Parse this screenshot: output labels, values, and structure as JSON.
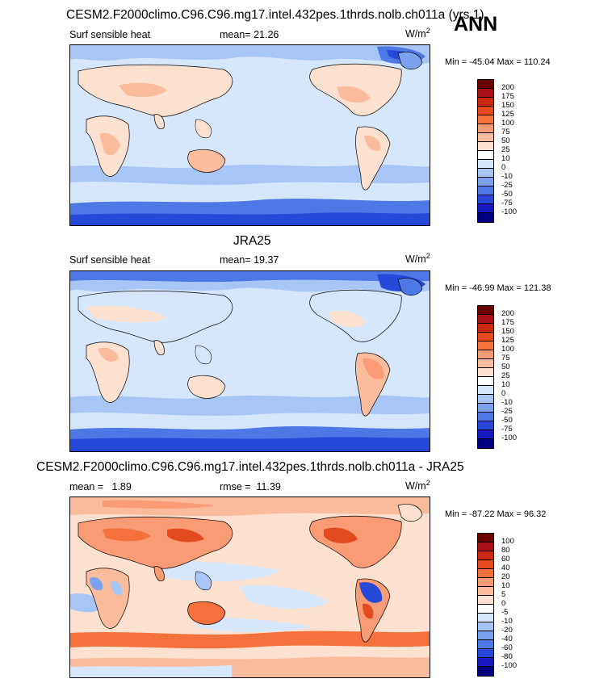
{
  "header": {
    "title": "CESM2.F2000climo.C96.C96.mg17.intel.432pes.1thrds.nolb.ch011a (yrs 1)",
    "season": "ANN"
  },
  "panels": [
    {
      "id": "model",
      "variable": "Surf sensible heat",
      "stat_label": "mean=",
      "stat_value": "21.26",
      "units": "W/m",
      "units_sup": "2",
      "min_max": "Min = -45.04 Max = 110.24",
      "levels": [
        "200",
        "175",
        "150",
        "125",
        "100",
        "75",
        "50",
        "25",
        "10",
        "0",
        "-10",
        "-25",
        "-50",
        "-75",
        "-100"
      ],
      "colors": [
        "#6b0000",
        "#a50f15",
        "#cb2a10",
        "#e34a1f",
        "#f4703c",
        "#f99b74",
        "#fbbc9e",
        "#fde1d0",
        "#ffffff",
        "#d6e7fb",
        "#a8c6f5",
        "#7ba2ee",
        "#4e78e6",
        "#2749d9",
        "#1719bf",
        "#000080"
      ]
    },
    {
      "id": "obs",
      "title": "JRA25",
      "variable": "Surf sensible heat",
      "stat_label": "mean=",
      "stat_value": "19.37",
      "units": "W/m",
      "units_sup": "2",
      "min_max": "Min = -46.99 Max = 121.38",
      "levels": [
        "200",
        "175",
        "150",
        "125",
        "100",
        "75",
        "50",
        "25",
        "10",
        "0",
        "-10",
        "-25",
        "-50",
        "-75",
        "-100"
      ],
      "colors": [
        "#6b0000",
        "#a50f15",
        "#cb2a10",
        "#e34a1f",
        "#f4703c",
        "#f99b74",
        "#fbbc9e",
        "#fde1d0",
        "#ffffff",
        "#d6e7fb",
        "#a8c6f5",
        "#7ba2ee",
        "#4e78e6",
        "#2749d9",
        "#1719bf",
        "#000080"
      ]
    },
    {
      "id": "diff",
      "title": "CESM2.F2000climo.C96.C96.mg17.intel.432pes.1thrds.nolb.ch011a - JRA25",
      "stat_label": "mean =",
      "stat_value": "1.89",
      "stat2_label": "rmse =",
      "stat2_value": "11.39",
      "units": "W/m",
      "units_sup": "2",
      "min_max": "Min = -87.22 Max = 96.32",
      "levels": [
        "100",
        "80",
        "60",
        "40",
        "20",
        "10",
        "5",
        "0",
        "-5",
        "-10",
        "-20",
        "-40",
        "-60",
        "-80",
        "-100"
      ],
      "colors": [
        "#6b0000",
        "#a50f15",
        "#cb2a10",
        "#e34a1f",
        "#f4703c",
        "#f99b74",
        "#fbbc9e",
        "#fde1d0",
        "#ffffff",
        "#d6e7fb",
        "#a8c6f5",
        "#7ba2ee",
        "#4e78e6",
        "#2749d9",
        "#1719bf",
        "#000080"
      ]
    }
  ]
}
